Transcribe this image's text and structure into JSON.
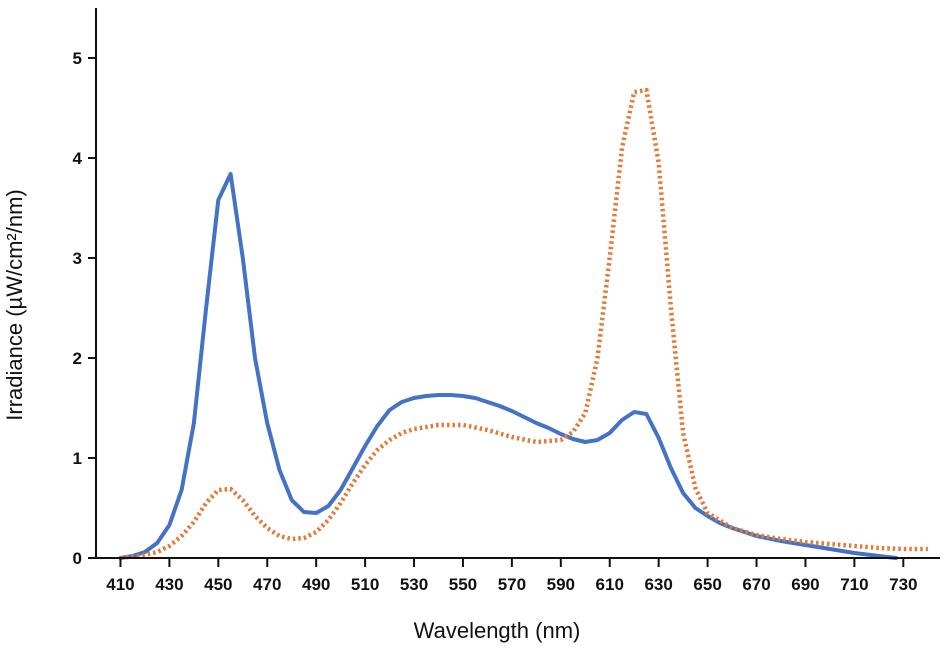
{
  "chart_data": {
    "type": "line",
    "title": "",
    "xlabel": "Wavelength (nm)",
    "ylabel": "Irradiance (µW/cm²/nm)",
    "xlim": [
      400,
      745
    ],
    "ylim": [
      0,
      5.5
    ],
    "x_ticks": [
      410,
      430,
      450,
      470,
      490,
      510,
      530,
      550,
      570,
      590,
      610,
      630,
      650,
      670,
      690,
      710,
      730
    ],
    "y_ticks": [
      0,
      1,
      2,
      3,
      4,
      5
    ],
    "grid": false,
    "legend": "none",
    "series": [
      {
        "color": "#4472C4",
        "style": "solid",
        "x": [
          410,
          415,
          420,
          425,
          430,
          435,
          440,
          445,
          450,
          455,
          460,
          465,
          470,
          475,
          480,
          485,
          490,
          495,
          500,
          505,
          510,
          515,
          520,
          525,
          530,
          535,
          540,
          545,
          550,
          555,
          560,
          565,
          570,
          575,
          580,
          585,
          590,
          595,
          600,
          605,
          610,
          615,
          620,
          625,
          630,
          635,
          640,
          645,
          650,
          655,
          660,
          670,
          680,
          690,
          700,
          710,
          720,
          727
        ],
        "values": [
          0.0,
          0.02,
          0.06,
          0.15,
          0.33,
          0.68,
          1.35,
          2.5,
          3.58,
          3.84,
          3.0,
          2.0,
          1.35,
          0.88,
          0.58,
          0.46,
          0.45,
          0.52,
          0.68,
          0.9,
          1.12,
          1.32,
          1.48,
          1.56,
          1.6,
          1.62,
          1.63,
          1.63,
          1.62,
          1.6,
          1.56,
          1.52,
          1.47,
          1.41,
          1.35,
          1.3,
          1.24,
          1.19,
          1.16,
          1.18,
          1.25,
          1.38,
          1.46,
          1.44,
          1.2,
          0.9,
          0.65,
          0.5,
          0.42,
          0.35,
          0.3,
          0.22,
          0.17,
          0.13,
          0.09,
          0.05,
          0.02,
          0.0
        ]
      },
      {
        "color": "#E07B39",
        "style": "dotted",
        "x": [
          410,
          420,
          425,
          430,
          435,
          440,
          445,
          450,
          455,
          460,
          465,
          470,
          475,
          480,
          485,
          490,
          495,
          500,
          505,
          510,
          515,
          520,
          525,
          530,
          540,
          550,
          560,
          570,
          580,
          590,
          595,
          600,
          605,
          610,
          615,
          620,
          625,
          630,
          635,
          640,
          645,
          650,
          660,
          670,
          680,
          690,
          700,
          710,
          720,
          730,
          740
        ],
        "values": [
          0.0,
          0.03,
          0.06,
          0.12,
          0.22,
          0.36,
          0.55,
          0.68,
          0.69,
          0.58,
          0.42,
          0.3,
          0.22,
          0.19,
          0.2,
          0.26,
          0.38,
          0.55,
          0.75,
          0.93,
          1.08,
          1.18,
          1.25,
          1.29,
          1.33,
          1.33,
          1.28,
          1.21,
          1.16,
          1.18,
          1.26,
          1.45,
          2.0,
          3.0,
          4.1,
          4.66,
          4.68,
          3.95,
          2.5,
          1.25,
          0.7,
          0.45,
          0.3,
          0.23,
          0.19,
          0.16,
          0.14,
          0.12,
          0.1,
          0.09,
          0.09
        ]
      }
    ]
  }
}
